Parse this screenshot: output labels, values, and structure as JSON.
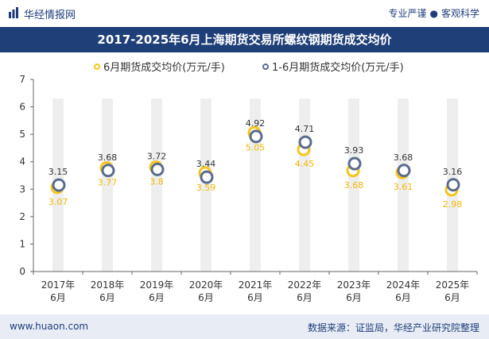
{
  "header": {
    "brand": "华经情报网",
    "slogan_left": "专业严谨",
    "slogan_right": "客观科学"
  },
  "chart_data": {
    "type": "line",
    "title": "2017-2025年6月上海期货交易所螺纹钢期货成交均价",
    "categories": [
      "2017年\n6月",
      "2018年\n6月",
      "2019年\n6月",
      "2020年\n6月",
      "2021年\n6月",
      "2022年\n6月",
      "2023年\n6月",
      "2024年\n6月",
      "2025年\n6月"
    ],
    "series": [
      {
        "name": "6月期货成交均价(万元/手)",
        "values": [
          3.07,
          3.77,
          3.8,
          3.59,
          5.05,
          4.45,
          3.68,
          3.61,
          2.98
        ],
        "color": "#f5c518"
      },
      {
        "name": "1-6月期货成交均价(万元/手)",
        "values": [
          3.15,
          3.68,
          3.72,
          3.44,
          4.92,
          4.71,
          3.93,
          3.68,
          3.16
        ],
        "color": "#5a6c8c"
      }
    ],
    "ylim": [
      0,
      7
    ],
    "yticks": [
      0,
      1,
      2,
      3,
      4,
      5,
      6,
      7
    ],
    "xlabel": "",
    "ylabel": ""
  },
  "footer": {
    "url": "www.huaon.com",
    "source": "数据来源：证监局，华经产业研究院整理"
  }
}
